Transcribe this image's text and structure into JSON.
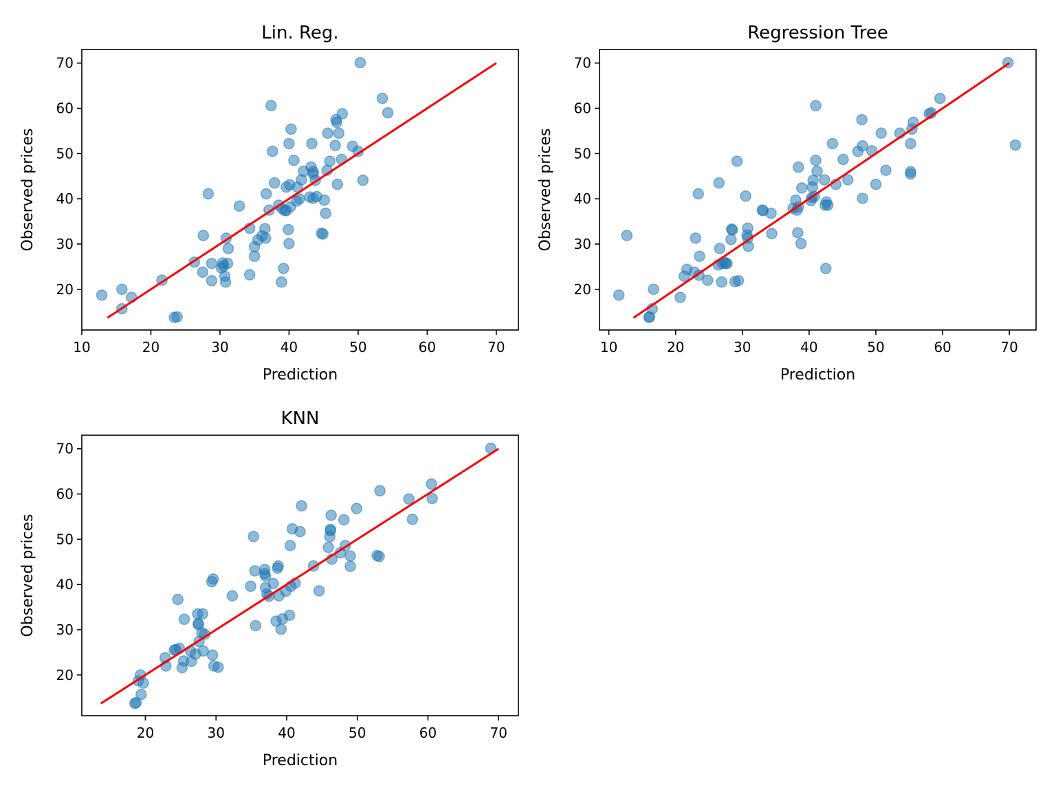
{
  "colors": {
    "points": "#1f77b4",
    "line": "#ff0000"
  },
  "chart_data": [
    {
      "type": "scatter",
      "title": "Lin. Reg.",
      "xlabel": "Prediction",
      "ylabel": "Observed prices",
      "xlim": [
        10,
        73.2
      ],
      "ylim": [
        11,
        73
      ],
      "xticks": [
        10,
        20,
        30,
        40,
        50,
        60,
        70
      ],
      "yticks": [
        20,
        30,
        40,
        50,
        60,
        70
      ],
      "grid": false,
      "reference_line": [
        [
          13.7,
          13.7
        ],
        [
          70,
          70
        ]
      ],
      "points": [
        [
          12.9,
          18.7
        ],
        [
          15.8,
          20.0
        ],
        [
          15.8,
          15.7
        ],
        [
          17.2,
          18.2
        ],
        [
          21.6,
          22.0
        ],
        [
          23.4,
          13.8
        ],
        [
          23.8,
          13.9
        ],
        [
          26.3,
          26.0
        ],
        [
          27.5,
          23.8
        ],
        [
          27.6,
          31.9
        ],
        [
          28.3,
          41.1
        ],
        [
          28.8,
          25.7
        ],
        [
          28.8,
          21.9
        ],
        [
          30.2,
          24.7
        ],
        [
          30.4,
          25.8
        ],
        [
          30.5,
          25.2
        ],
        [
          30.7,
          22.9
        ],
        [
          30.8,
          21.6
        ],
        [
          30.9,
          31.3
        ],
        [
          31.1,
          25.7
        ],
        [
          31.2,
          29.0
        ],
        [
          32.8,
          38.4
        ],
        [
          34.3,
          23.2
        ],
        [
          34.3,
          33.5
        ],
        [
          35.0,
          29.4
        ],
        [
          35.0,
          27.3
        ],
        [
          35.5,
          30.9
        ],
        [
          36.1,
          31.8
        ],
        [
          36.5,
          33.4
        ],
        [
          36.6,
          31.3
        ],
        [
          36.7,
          41.1
        ],
        [
          37.1,
          37.5
        ],
        [
          37.4,
          60.6
        ],
        [
          37.6,
          50.5
        ],
        [
          37.9,
          43.5
        ],
        [
          38.5,
          38.6
        ],
        [
          38.9,
          21.6
        ],
        [
          39.0,
          37.8
        ],
        [
          39.2,
          24.6
        ],
        [
          39.4,
          37.4
        ],
        [
          39.6,
          37.4
        ],
        [
          39.6,
          42.6
        ],
        [
          39.9,
          33.2
        ],
        [
          40.0,
          30.1
        ],
        [
          40.0,
          52.2
        ],
        [
          40.1,
          43.1
        ],
        [
          40.2,
          38.2
        ],
        [
          40.3,
          55.4
        ],
        [
          40.7,
          48.5
        ],
        [
          41.1,
          39.5
        ],
        [
          41.2,
          42.6
        ],
        [
          41.5,
          40.0
        ],
        [
          41.8,
          44.2
        ],
        [
          42.1,
          46.1
        ],
        [
          43.0,
          40.4
        ],
        [
          43.2,
          47.0
        ],
        [
          43.3,
          52.2
        ],
        [
          43.5,
          46.0
        ],
        [
          43.5,
          45.5
        ],
        [
          43.5,
          40.1
        ],
        [
          43.8,
          44.1
        ],
        [
          44.0,
          40.5
        ],
        [
          44.7,
          32.4
        ],
        [
          44.9,
          32.2
        ],
        [
          45.1,
          39.7
        ],
        [
          45.3,
          36.8
        ],
        [
          45.5,
          46.3
        ],
        [
          45.6,
          54.5
        ],
        [
          45.9,
          48.3
        ],
        [
          46.7,
          51.8
        ],
        [
          46.8,
          57.5
        ],
        [
          46.9,
          56.9
        ],
        [
          47.0,
          43.2
        ],
        [
          47.2,
          54.5
        ],
        [
          47.6,
          48.7
        ],
        [
          47.7,
          58.8
        ],
        [
          49.2,
          51.6
        ],
        [
          50.0,
          50.5
        ],
        [
          50.3,
          70.1
        ],
        [
          50.7,
          44.1
        ],
        [
          53.5,
          62.2
        ],
        [
          54.3,
          59.0
        ]
      ]
    },
    {
      "type": "scatter",
      "title": "Regression Tree",
      "xlabel": "Prediction",
      "ylabel": "Observed prices",
      "xlim": [
        8.6,
        74
      ],
      "ylim": [
        11,
        73
      ],
      "xticks": [
        10,
        20,
        30,
        40,
        50,
        60,
        70
      ],
      "yticks": [
        20,
        30,
        40,
        50,
        60,
        70
      ],
      "grid": false,
      "reference_line": [
        [
          13.7,
          13.7
        ],
        [
          70,
          70
        ]
      ],
      "points": [
        [
          11.5,
          18.7
        ],
        [
          12.7,
          31.9
        ],
        [
          16.0,
          13.8
        ],
        [
          16.1,
          13.9
        ],
        [
          16.5,
          15.7
        ],
        [
          16.7,
          20.0
        ],
        [
          20.7,
          18.2
        ],
        [
          21.3,
          22.9
        ],
        [
          21.7,
          24.4
        ],
        [
          22.8,
          23.8
        ],
        [
          23.0,
          31.3
        ],
        [
          23.4,
          41.1
        ],
        [
          23.5,
          23.1
        ],
        [
          23.6,
          27.3
        ],
        [
          24.8,
          22.0
        ],
        [
          26.4,
          25.4
        ],
        [
          26.5,
          43.5
        ],
        [
          26.6,
          29.0
        ],
        [
          26.9,
          21.6
        ],
        [
          27.0,
          25.7
        ],
        [
          27.3,
          26.0
        ],
        [
          27.5,
          25.7
        ],
        [
          27.7,
          25.7
        ],
        [
          28.3,
          31.0
        ],
        [
          28.4,
          33.3
        ],
        [
          28.5,
          33.1
        ],
        [
          28.9,
          21.7
        ],
        [
          29.2,
          48.3
        ],
        [
          29.4,
          21.9
        ],
        [
          30.5,
          40.6
        ],
        [
          30.7,
          32.0
        ],
        [
          30.8,
          31.3
        ],
        [
          30.8,
          33.5
        ],
        [
          30.9,
          29.5
        ],
        [
          33.0,
          37.5
        ],
        [
          33.1,
          37.4
        ],
        [
          34.3,
          36.8
        ],
        [
          34.4,
          32.3
        ],
        [
          37.6,
          37.9
        ],
        [
          38.0,
          39.7
        ],
        [
          38.2,
          37.5
        ],
        [
          38.3,
          32.5
        ],
        [
          38.4,
          47.0
        ],
        [
          38.4,
          38.2
        ],
        [
          38.8,
          30.1
        ],
        [
          38.9,
          42.4
        ],
        [
          40.3,
          39.6
        ],
        [
          40.4,
          40.3
        ],
        [
          40.5,
          42.6
        ],
        [
          40.6,
          44.1
        ],
        [
          40.8,
          40.5
        ],
        [
          41.0,
          48.5
        ],
        [
          41.0,
          60.6
        ],
        [
          41.2,
          46.1
        ],
        [
          42.3,
          44.2
        ],
        [
          42.4,
          38.6
        ],
        [
          42.5,
          24.6
        ],
        [
          42.6,
          39.3
        ],
        [
          42.8,
          38.6
        ],
        [
          43.5,
          52.2
        ],
        [
          44.0,
          43.2
        ],
        [
          45.1,
          48.7
        ],
        [
          45.8,
          44.2
        ],
        [
          47.3,
          50.5
        ],
        [
          47.9,
          57.5
        ],
        [
          48.0,
          51.7
        ],
        [
          48.0,
          40.1
        ],
        [
          49.4,
          50.6
        ],
        [
          50.0,
          43.2
        ],
        [
          50.8,
          54.5
        ],
        [
          51.5,
          46.3
        ],
        [
          53.6,
          54.5
        ],
        [
          55.2,
          45.5
        ],
        [
          55.2,
          52.2
        ],
        [
          55.2,
          46.0
        ],
        [
          55.4,
          55.4
        ],
        [
          55.6,
          56.9
        ],
        [
          58.0,
          58.8
        ],
        [
          58.3,
          59.0
        ],
        [
          59.6,
          62.2
        ],
        [
          69.8,
          70.1
        ],
        [
          70.9,
          51.9
        ]
      ]
    },
    {
      "type": "scatter",
      "title": "KNN",
      "xlabel": "Prediction",
      "ylabel": "Observed prices",
      "xlim": [
        11,
        72.8
      ],
      "ylim": [
        11,
        73
      ],
      "xticks": [
        20,
        30,
        40,
        50,
        60,
        70
      ],
      "yticks": [
        20,
        30,
        40,
        50,
        60,
        70
      ],
      "grid": false,
      "reference_line": [
        [
          13.7,
          13.7
        ],
        [
          70,
          70
        ]
      ],
      "points": [
        [
          18.5,
          13.7
        ],
        [
          18.7,
          13.9
        ],
        [
          19.0,
          18.7
        ],
        [
          19.3,
          20.0
        ],
        [
          19.4,
          15.7
        ],
        [
          19.7,
          18.2
        ],
        [
          22.8,
          23.8
        ],
        [
          22.9,
          22.0
        ],
        [
          24.1,
          25.5
        ],
        [
          24.3,
          25.6
        ],
        [
          24.6,
          36.7
        ],
        [
          24.8,
          25.9
        ],
        [
          25.2,
          21.6
        ],
        [
          25.4,
          23.1
        ],
        [
          25.5,
          32.3
        ],
        [
          26.4,
          25.3
        ],
        [
          26.5,
          23.0
        ],
        [
          27.1,
          24.6
        ],
        [
          27.4,
          33.5
        ],
        [
          27.5,
          31.4
        ],
        [
          27.5,
          31.1
        ],
        [
          27.6,
          27.4
        ],
        [
          28.0,
          29.3
        ],
        [
          28.1,
          33.5
        ],
        [
          28.2,
          25.3
        ],
        [
          28.4,
          29.0
        ],
        [
          29.4,
          40.6
        ],
        [
          29.6,
          41.2
        ],
        [
          29.5,
          24.4
        ],
        [
          29.7,
          22.0
        ],
        [
          30.3,
          21.7
        ],
        [
          32.3,
          37.5
        ],
        [
          34.9,
          39.6
        ],
        [
          35.3,
          50.6
        ],
        [
          35.5,
          43.0
        ],
        [
          35.6,
          30.9
        ],
        [
          36.9,
          43.3
        ],
        [
          36.9,
          42.4
        ],
        [
          37.0,
          41.9
        ],
        [
          37.0,
          39.3
        ],
        [
          37.2,
          37.9
        ],
        [
          37.5,
          37.4
        ],
        [
          38.1,
          40.2
        ],
        [
          38.5,
          31.9
        ],
        [
          38.7,
          43.6
        ],
        [
          38.8,
          44.1
        ],
        [
          38.9,
          37.5
        ],
        [
          39.2,
          30.1
        ],
        [
          39.4,
          32.4
        ],
        [
          39.9,
          38.5
        ],
        [
          40.4,
          33.2
        ],
        [
          40.5,
          48.6
        ],
        [
          40.6,
          39.6
        ],
        [
          40.8,
          52.3
        ],
        [
          41.2,
          40.3
        ],
        [
          41.9,
          51.7
        ],
        [
          42.1,
          57.4
        ],
        [
          43.8,
          44.1
        ],
        [
          44.6,
          38.6
        ],
        [
          45.9,
          48.2
        ],
        [
          46.1,
          50.6
        ],
        [
          46.2,
          52.2
        ],
        [
          46.2,
          51.9
        ],
        [
          46.3,
          55.3
        ],
        [
          46.4,
          45.6
        ],
        [
          47.6,
          47.0
        ],
        [
          48.1,
          54.3
        ],
        [
          48.3,
          48.6
        ],
        [
          49.0,
          46.3
        ],
        [
          49.0,
          44.0
        ],
        [
          49.9,
          56.8
        ],
        [
          52.8,
          46.4
        ],
        [
          53.1,
          46.2
        ],
        [
          53.2,
          60.7
        ],
        [
          57.3,
          58.9
        ],
        [
          57.8,
          54.4
        ],
        [
          60.5,
          62.2
        ],
        [
          60.6,
          59.0
        ],
        [
          68.9,
          70.1
        ]
      ]
    }
  ]
}
